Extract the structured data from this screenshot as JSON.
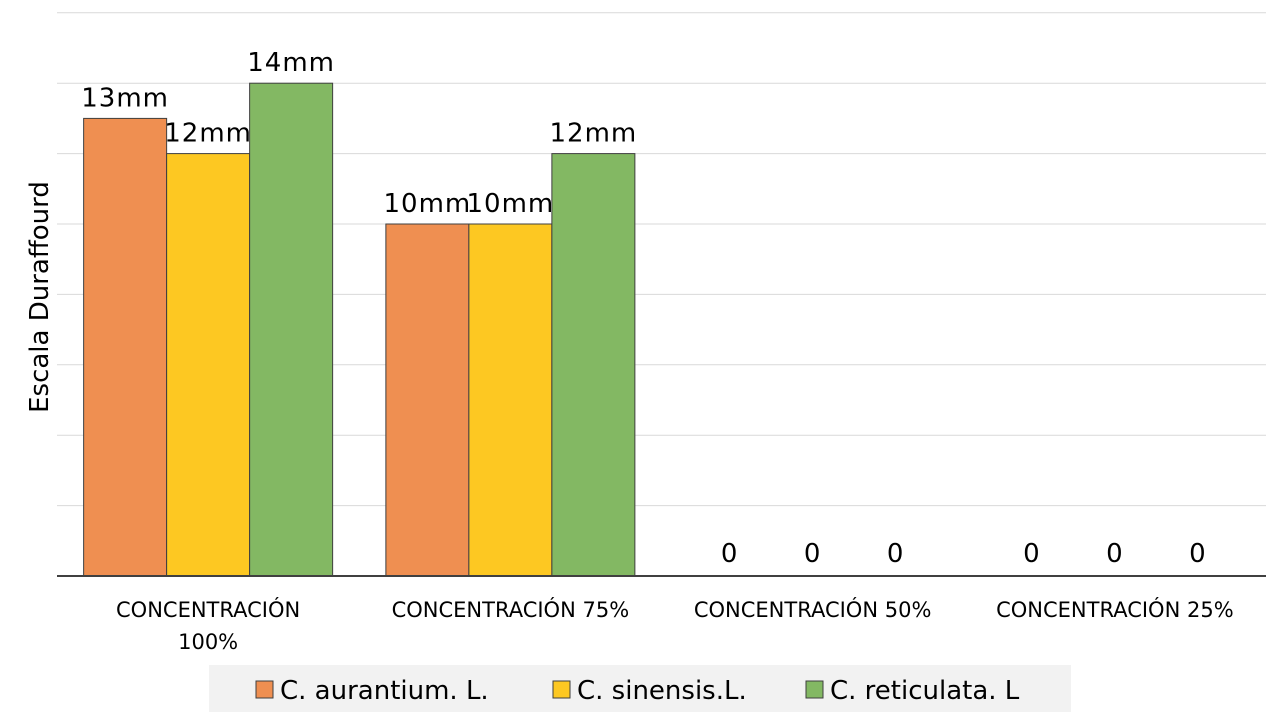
{
  "chart_data": {
    "type": "bar",
    "title": "",
    "xlabel": "",
    "ylabel": "Escala Duraffourd",
    "ylim": [
      0,
      16
    ],
    "y_gridlines": [
      2,
      4,
      6,
      8,
      10,
      12,
      14,
      16
    ],
    "grid": true,
    "legend_position": "bottom",
    "categories": [
      [
        "CONCENTRACIÓN",
        "100%"
      ],
      [
        "CONCENTRACIÓN 75%"
      ],
      [
        "CONCENTRACIÓN 50%"
      ],
      [
        "CONCENTRACIÓN 25%"
      ]
    ],
    "series": [
      {
        "name": "C. aurantium. L.",
        "color": "#ef8f51",
        "values": [
          13,
          10,
          0,
          0
        ],
        "labels": [
          "13mm",
          "10mm",
          "0",
          "0"
        ]
      },
      {
        "name": "C. sinensis.L.",
        "color": "#fdc822",
        "values": [
          12,
          10,
          0,
          0
        ],
        "labels": [
          "12mm",
          "10mm",
          "0",
          "0"
        ]
      },
      {
        "name": "C. reticulata. L",
        "color": "#83b863",
        "values": [
          14,
          12,
          0,
          0
        ],
        "labels": [
          "14mm",
          "12mm",
          "0",
          "0"
        ]
      }
    ]
  }
}
